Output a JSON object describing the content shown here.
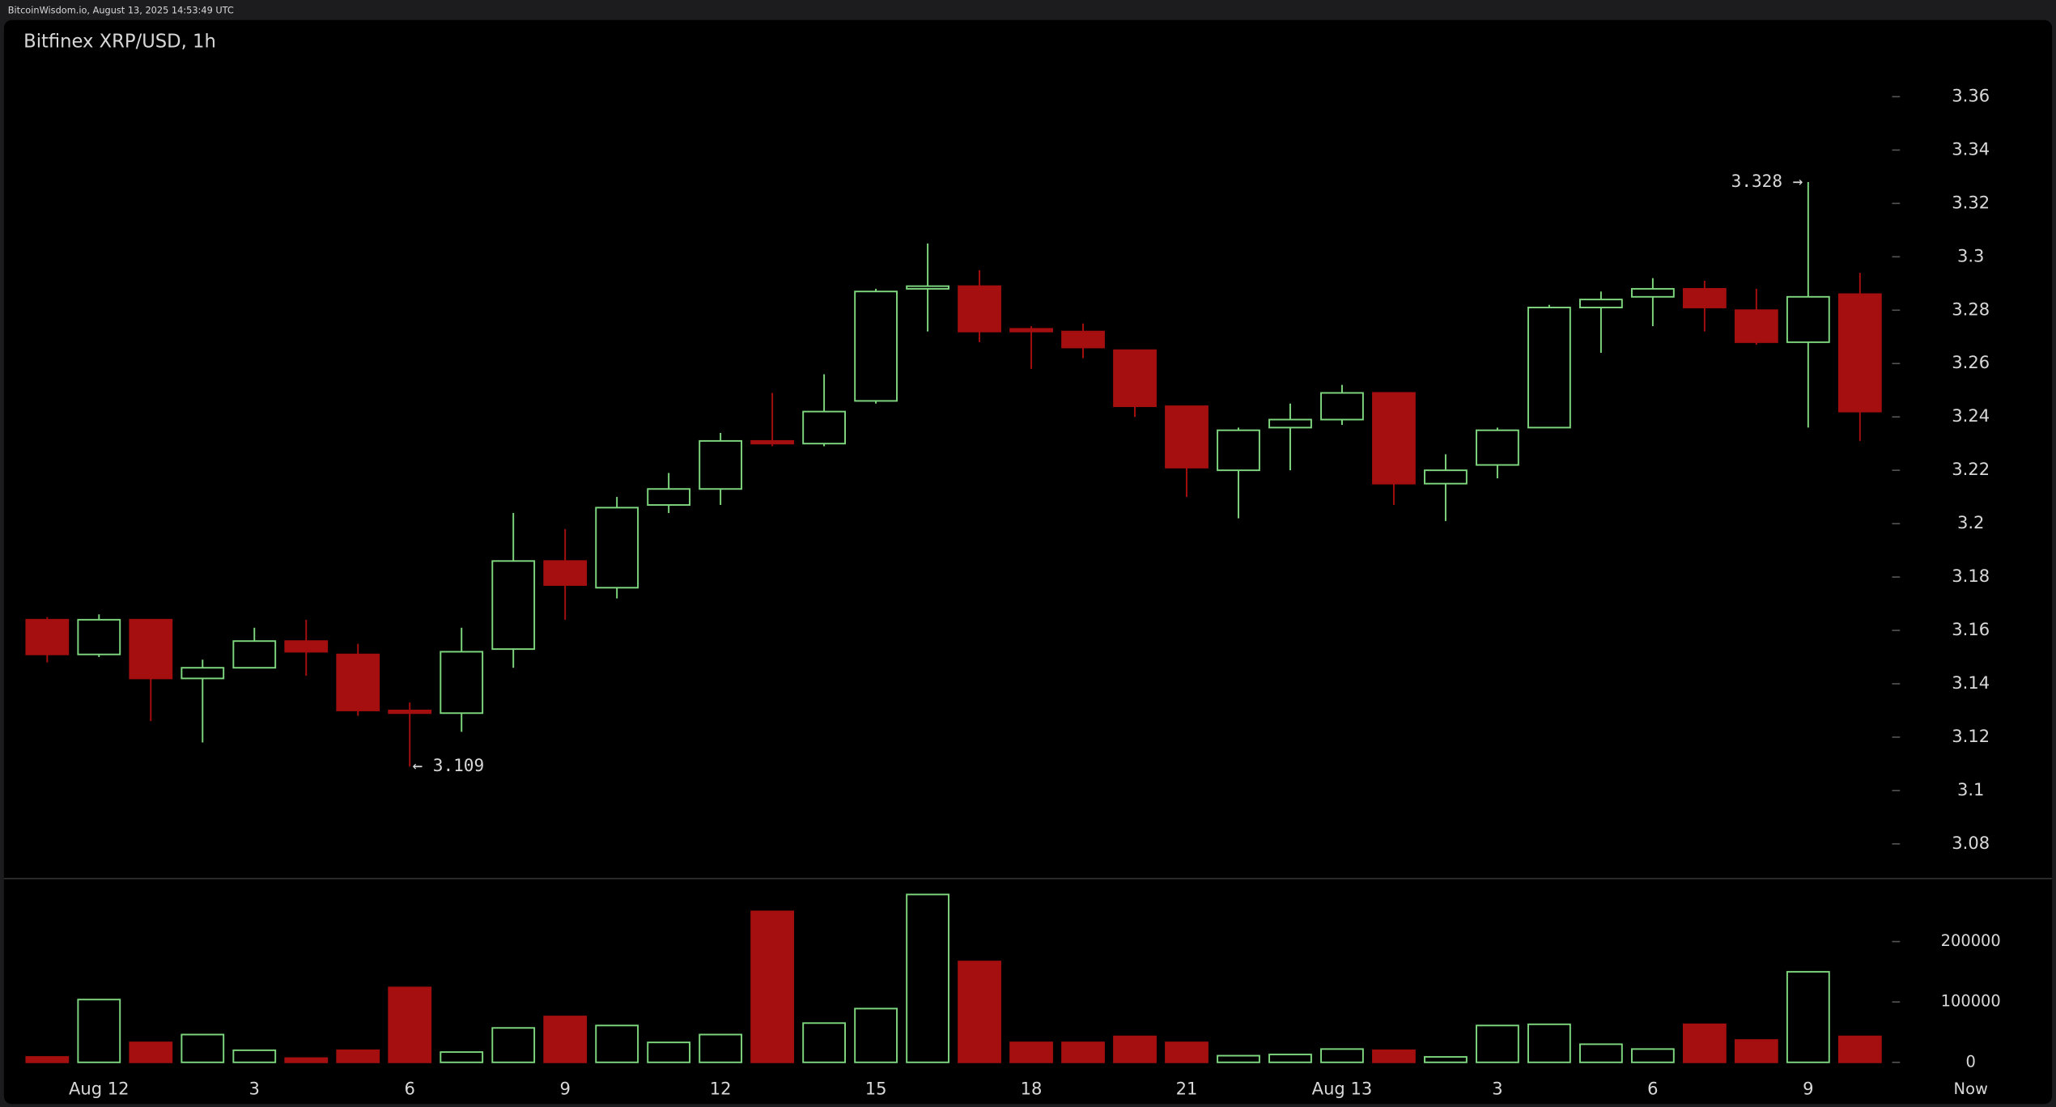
{
  "header": "BitcoinWisdom.io, August 13, 2025 14:53:49 UTC",
  "chart_data": {
    "type": "candlestick",
    "title": "Bitfinex XRP/USD, 1h",
    "categories": [
      null,
      "Aug 12",
      null,
      null,
      "3",
      null,
      null,
      "6",
      null,
      null,
      "9",
      null,
      null,
      "12",
      null,
      null,
      "15",
      null,
      null,
      "18",
      null,
      null,
      "21",
      null,
      null,
      "Aug 13",
      null,
      null,
      "3",
      null,
      null,
      "6",
      null,
      null,
      "9",
      null
    ],
    "now_label": "Now",
    "open": [
      3.164,
      3.151,
      3.164,
      3.142,
      3.146,
      3.156,
      3.151,
      3.13,
      3.129,
      3.153,
      3.186,
      3.176,
      3.207,
      3.213,
      3.231,
      3.23,
      3.246,
      3.288,
      3.289,
      3.273,
      3.272,
      3.265,
      3.244,
      3.22,
      3.236,
      3.239,
      3.249,
      3.215,
      3.222,
      3.236,
      3.281,
      3.285,
      3.288,
      3.28,
      3.268,
      3.286
    ],
    "high": [
      3.165,
      3.166,
      3.164,
      3.149,
      3.161,
      3.164,
      3.155,
      3.133,
      3.161,
      3.204,
      3.198,
      3.21,
      3.219,
      3.234,
      3.249,
      3.256,
      3.288,
      3.305,
      3.295,
      3.274,
      3.275,
      3.265,
      3.244,
      3.236,
      3.245,
      3.252,
      3.249,
      3.226,
      3.236,
      3.282,
      3.287,
      3.292,
      3.291,
      3.288,
      3.328,
      3.294
    ],
    "low": [
      3.148,
      3.15,
      3.126,
      3.118,
      3.146,
      3.143,
      3.128,
      3.109,
      3.122,
      3.146,
      3.164,
      3.172,
      3.204,
      3.207,
      3.229,
      3.229,
      3.245,
      3.272,
      3.268,
      3.258,
      3.262,
      3.24,
      3.21,
      3.202,
      3.22,
      3.237,
      3.207,
      3.201,
      3.217,
      3.236,
      3.264,
      3.274,
      3.272,
      3.267,
      3.236,
      3.231
    ],
    "close": [
      3.151,
      3.164,
      3.142,
      3.146,
      3.156,
      3.152,
      3.13,
      3.129,
      3.152,
      3.186,
      3.177,
      3.206,
      3.213,
      3.231,
      3.23,
      3.242,
      3.287,
      3.289,
      3.272,
      3.272,
      3.266,
      3.244,
      3.221,
      3.235,
      3.239,
      3.249,
      3.215,
      3.22,
      3.235,
      3.281,
      3.284,
      3.288,
      3.281,
      3.268,
      3.285,
      3.242
    ],
    "volume": [
      9000,
      104000,
      33000,
      46000,
      20000,
      7000,
      20000,
      124000,
      17000,
      57000,
      76000,
      61000,
      33000,
      46000,
      250000,
      65000,
      89000,
      278000,
      167000,
      33000,
      33000,
      43000,
      33000,
      11000,
      13000,
      22000,
      20000,
      9000,
      61000,
      63000,
      30000,
      22000,
      63000,
      37000,
      150000,
      43000
    ],
    "up_color": "#7ed67e",
    "down_color": "#a50f0f",
    "ylim": [
      3.067,
      3.374
    ],
    "yticks": [
      3.08,
      3.1,
      3.12,
      3.14,
      3.16,
      3.18,
      3.2,
      3.22,
      3.24,
      3.26,
      3.28,
      3.3,
      3.32,
      3.34,
      3.36
    ],
    "volume_ylim": [
      -17000,
      300000
    ],
    "volume_yticks": [
      0,
      100000,
      200000
    ],
    "annotations": [
      {
        "text": "3.328 →",
        "index": 34,
        "at": "high"
      },
      {
        "text": "← 3.109",
        "index": 7,
        "at": "low"
      }
    ]
  }
}
